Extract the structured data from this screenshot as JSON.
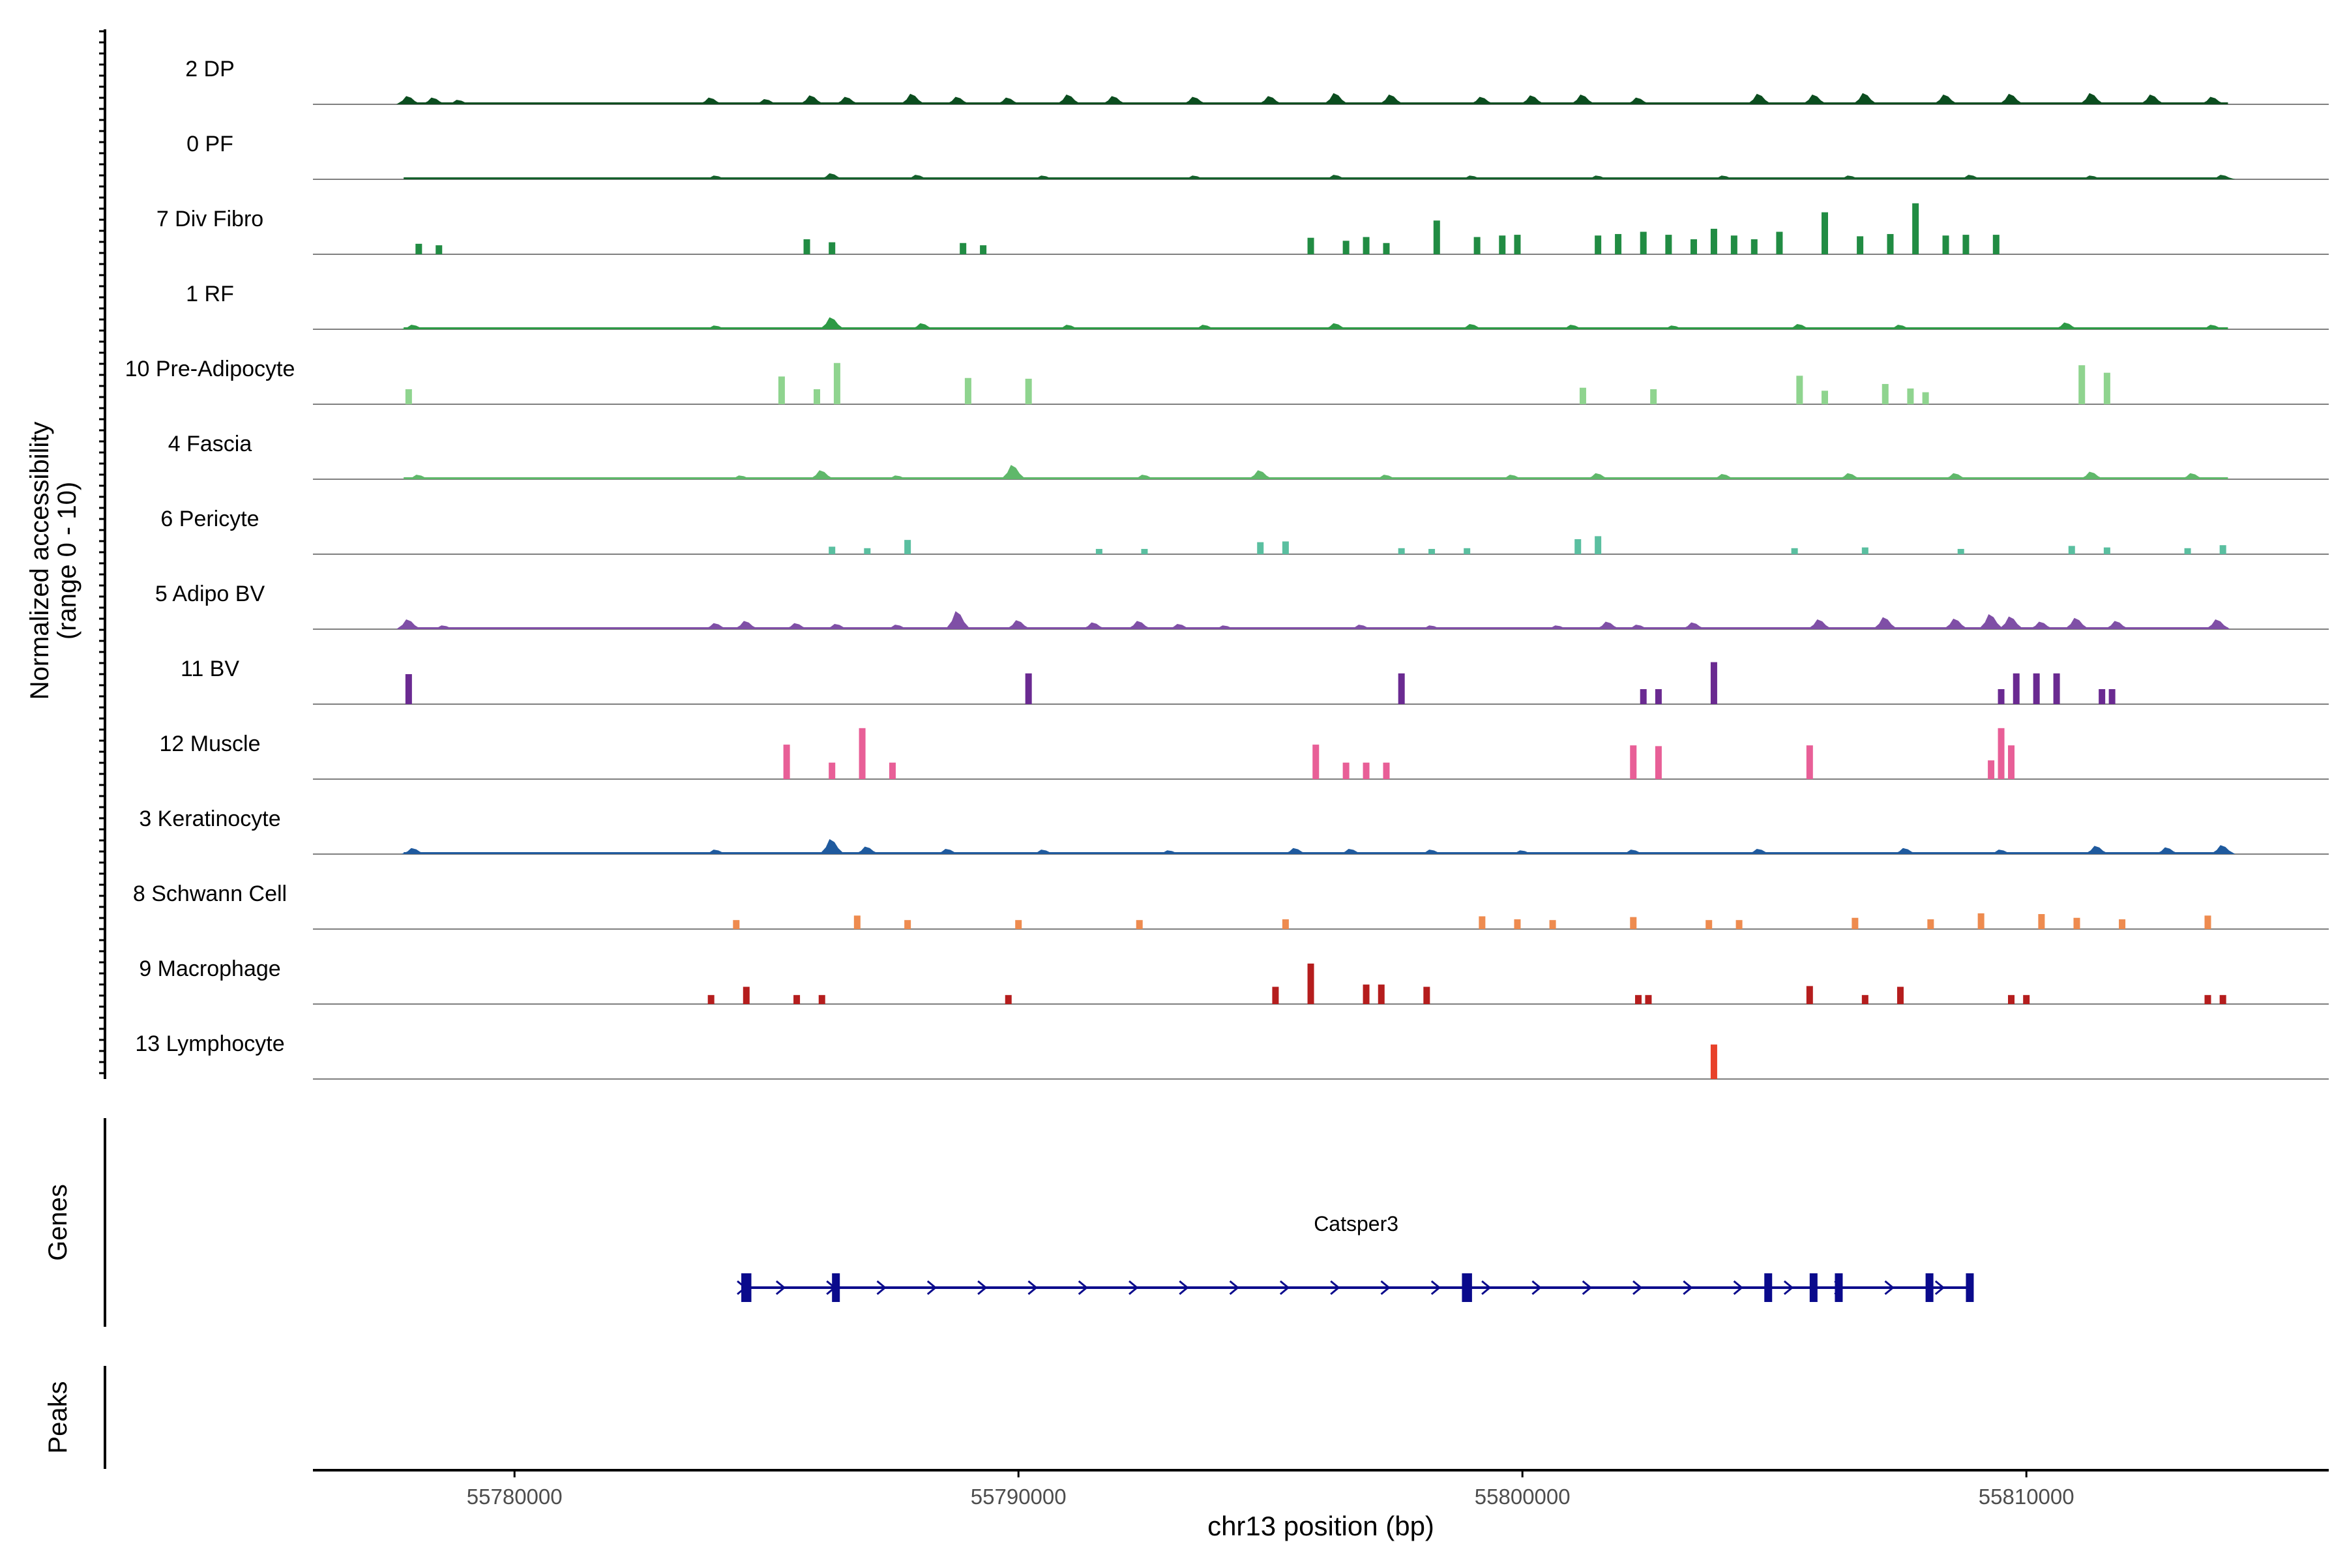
{
  "chart_data": {
    "type": "coverage",
    "chromosome": "chr13",
    "xlabel": "chr13 position (bp)",
    "ylabel_line1": "Normalized accessibility",
    "ylabel_line2": "(range 0 - 10)",
    "xlim": [
      55776000,
      55816000
    ],
    "x_ticks": [
      55780000,
      55790000,
      55800000,
      55810000
    ],
    "x_tick_labels": [
      "55780000",
      "55790000",
      "55800000",
      "55810000"
    ],
    "y_range": [
      0,
      10
    ],
    "genes_label": "Genes",
    "peaks_label": "Peaks",
    "tracks": [
      {
        "name": "2 DP",
        "color": "#0b4d1f",
        "start": 55777800,
        "end": 55814000,
        "peaks": [
          [
            55777900,
            1.1
          ],
          [
            55778400,
            0.9
          ],
          [
            55778900,
            0.6
          ],
          [
            55783900,
            0.9
          ],
          [
            55785000,
            0.7
          ],
          [
            55785900,
            1.2
          ],
          [
            55786600,
            1.0
          ],
          [
            55787900,
            1.4
          ],
          [
            55788800,
            1.0
          ],
          [
            55789800,
            0.9
          ],
          [
            55791000,
            1.3
          ],
          [
            55791900,
            1.1
          ],
          [
            55793500,
            1.0
          ],
          [
            55795000,
            1.1
          ],
          [
            55796300,
            1.5
          ],
          [
            55797400,
            1.3
          ],
          [
            55799200,
            1.0
          ],
          [
            55800200,
            1.2
          ],
          [
            55801200,
            1.3
          ],
          [
            55802300,
            0.9
          ],
          [
            55804700,
            1.4
          ],
          [
            55805800,
            1.3
          ],
          [
            55806800,
            1.5
          ],
          [
            55808400,
            1.3
          ],
          [
            55809700,
            1.4
          ],
          [
            55811300,
            1.5
          ],
          [
            55812500,
            1.3
          ],
          [
            55813700,
            1.0
          ]
        ]
      },
      {
        "name": "0 PF",
        "color": "#14602b",
        "start": 55777800,
        "end": 55814000,
        "peaks": [
          [
            55784000,
            0.5
          ],
          [
            55786300,
            0.8
          ],
          [
            55788000,
            0.6
          ],
          [
            55790500,
            0.5
          ],
          [
            55793500,
            0.5
          ],
          [
            55796300,
            0.6
          ],
          [
            55799000,
            0.5
          ],
          [
            55801500,
            0.5
          ],
          [
            55804000,
            0.5
          ],
          [
            55806500,
            0.5
          ],
          [
            55808900,
            0.6
          ],
          [
            55811300,
            0.5
          ],
          [
            55813900,
            0.6
          ]
        ]
      },
      {
        "name": "7 Div Fibro",
        "color": "#218c43",
        "start": 55777800,
        "end": 55814000,
        "sparse": true,
        "peaks": [
          [
            55778100,
            1.4
          ],
          [
            55778500,
            1.2
          ],
          [
            55785800,
            2.0
          ],
          [
            55786300,
            1.6
          ],
          [
            55788900,
            1.5
          ],
          [
            55789300,
            1.2
          ],
          [
            55795800,
            2.2
          ],
          [
            55796500,
            1.8
          ],
          [
            55796900,
            2.3
          ],
          [
            55797300,
            1.5
          ],
          [
            55798300,
            4.5
          ],
          [
            55799100,
            2.3
          ],
          [
            55799600,
            2.5
          ],
          [
            55799900,
            2.6
          ],
          [
            55801500,
            2.5
          ],
          [
            55801900,
            2.7
          ],
          [
            55802400,
            3.0
          ],
          [
            55802900,
            2.6
          ],
          [
            55803400,
            2.0
          ],
          [
            55803800,
            3.4
          ],
          [
            55804200,
            2.5
          ],
          [
            55804600,
            2.0
          ],
          [
            55805100,
            3.0
          ],
          [
            55806000,
            5.6
          ],
          [
            55806700,
            2.4
          ],
          [
            55807300,
            2.7
          ],
          [
            55807800,
            6.8
          ],
          [
            55808400,
            2.5
          ],
          [
            55808800,
            2.6
          ],
          [
            55809400,
            2.6
          ]
        ]
      },
      {
        "name": "1 RF",
        "color": "#2d9945",
        "start": 55777800,
        "end": 55814000,
        "peaks": [
          [
            55778000,
            0.6
          ],
          [
            55784000,
            0.5
          ],
          [
            55786300,
            1.6
          ],
          [
            55788100,
            0.8
          ],
          [
            55791000,
            0.6
          ],
          [
            55793700,
            0.6
          ],
          [
            55796300,
            0.8
          ],
          [
            55799000,
            0.7
          ],
          [
            55801000,
            0.6
          ],
          [
            55803000,
            0.5
          ],
          [
            55805500,
            0.7
          ],
          [
            55807500,
            0.6
          ],
          [
            55810800,
            0.9
          ],
          [
            55813700,
            0.6
          ]
        ]
      },
      {
        "name": "10 Pre-Adipocyte",
        "color": "#8fd48f",
        "start": 55777800,
        "end": 55814000,
        "sparse": true,
        "peaks": [
          [
            55777900,
            2.0
          ],
          [
            55785300,
            3.7
          ],
          [
            55786000,
            2.0
          ],
          [
            55786400,
            5.5
          ],
          [
            55789000,
            3.5
          ],
          [
            55790200,
            3.4
          ],
          [
            55801200,
            2.2
          ],
          [
            55802600,
            2.0
          ],
          [
            55805500,
            3.8
          ],
          [
            55806000,
            1.8
          ],
          [
            55807200,
            2.7
          ],
          [
            55807700,
            2.1
          ],
          [
            55808000,
            1.6
          ],
          [
            55811100,
            5.2
          ],
          [
            55811600,
            4.2
          ]
        ]
      },
      {
        "name": "4 Fascia",
        "color": "#5fb86a",
        "start": 55777800,
        "end": 55814000,
        "peaks": [
          [
            55778100,
            0.6
          ],
          [
            55784500,
            0.5
          ],
          [
            55786100,
            1.2
          ],
          [
            55787600,
            0.5
          ],
          [
            55789900,
            1.9
          ],
          [
            55792500,
            0.6
          ],
          [
            55794800,
            1.2
          ],
          [
            55797300,
            0.6
          ],
          [
            55799800,
            0.6
          ],
          [
            55801500,
            0.8
          ],
          [
            55804000,
            0.7
          ],
          [
            55806500,
            0.8
          ],
          [
            55808600,
            0.8
          ],
          [
            55811300,
            1.0
          ],
          [
            55813300,
            0.8
          ]
        ]
      },
      {
        "name": "6 Pericyte",
        "color": "#5abfa0",
        "start": 55786200,
        "end": 55814000,
        "sparse": true,
        "peaks": [
          [
            55786300,
            1.0
          ],
          [
            55787000,
            0.8
          ],
          [
            55787800,
            1.9
          ],
          [
            55791600,
            0.7
          ],
          [
            55792500,
            0.7
          ],
          [
            55794800,
            1.6
          ],
          [
            55795300,
            1.7
          ],
          [
            55797600,
            0.8
          ],
          [
            55798200,
            0.7
          ],
          [
            55798900,
            0.8
          ],
          [
            55801100,
            2.0
          ],
          [
            55801500,
            2.4
          ],
          [
            55805400,
            0.8
          ],
          [
            55806800,
            0.9
          ],
          [
            55808700,
            0.7
          ],
          [
            55810900,
            1.1
          ],
          [
            55811600,
            0.9
          ],
          [
            55813200,
            0.8
          ],
          [
            55813900,
            1.2
          ]
        ]
      },
      {
        "name": "5 Adipo BV",
        "color": "#7f4fa6",
        "start": 55777800,
        "end": 55814000,
        "peaks": [
          [
            55777900,
            1.3
          ],
          [
            55778600,
            0.5
          ],
          [
            55784000,
            0.8
          ],
          [
            55784600,
            1.1
          ],
          [
            55785600,
            0.8
          ],
          [
            55786400,
            0.7
          ],
          [
            55787600,
            0.6
          ],
          [
            55788800,
            2.4
          ],
          [
            55790000,
            1.2
          ],
          [
            55791500,
            0.9
          ],
          [
            55792400,
            1.1
          ],
          [
            55793200,
            0.7
          ],
          [
            55794100,
            0.5
          ],
          [
            55796800,
            0.6
          ],
          [
            55798200,
            0.5
          ],
          [
            55800700,
            0.5
          ],
          [
            55801700,
            1.0
          ],
          [
            55802300,
            0.6
          ],
          [
            55803400,
            0.9
          ],
          [
            55805900,
            1.3
          ],
          [
            55807200,
            1.6
          ],
          [
            55808600,
            1.4
          ],
          [
            55809300,
            2.0
          ],
          [
            55809700,
            1.7
          ],
          [
            55810300,
            1.0
          ],
          [
            55811000,
            1.5
          ],
          [
            55811800,
            1.1
          ],
          [
            55813800,
            1.3
          ]
        ]
      },
      {
        "name": "11 BV",
        "color": "#6a2a91",
        "start": 55777800,
        "end": 55814000,
        "sparse": true,
        "peaks": [
          [
            55777900,
            4.0
          ],
          [
            55790200,
            4.1
          ],
          [
            55797600,
            4.1
          ],
          [
            55802400,
            2.0
          ],
          [
            55802700,
            2.0
          ],
          [
            55803800,
            5.6
          ],
          [
            55809500,
            2.0
          ],
          [
            55809800,
            4.1
          ],
          [
            55810200,
            4.1
          ],
          [
            55810600,
            4.1
          ],
          [
            55811500,
            2.0
          ],
          [
            55811700,
            2.0
          ]
        ]
      },
      {
        "name": "12 Muscle",
        "color": "#e85f97",
        "start": 55784000,
        "end": 55814000,
        "sparse": true,
        "peaks": [
          [
            55785400,
            4.6
          ],
          [
            55786300,
            2.2
          ],
          [
            55786900,
            6.8
          ],
          [
            55787500,
            2.2
          ],
          [
            55795900,
            4.6
          ],
          [
            55796500,
            2.2
          ],
          [
            55796900,
            2.2
          ],
          [
            55797300,
            2.2
          ],
          [
            55802200,
            4.5
          ],
          [
            55802700,
            4.4
          ],
          [
            55805700,
            4.5
          ],
          [
            55809300,
            2.5
          ],
          [
            55809500,
            6.8
          ],
          [
            55809700,
            4.5
          ]
        ]
      },
      {
        "name": "3 Keratinocyte",
        "color": "#1f5a9e",
        "start": 55777800,
        "end": 55814000,
        "peaks": [
          [
            55778000,
            0.8
          ],
          [
            55784000,
            0.6
          ],
          [
            55786300,
            2.0
          ],
          [
            55787000,
            1.0
          ],
          [
            55788600,
            0.7
          ],
          [
            55790500,
            0.6
          ],
          [
            55793000,
            0.5
          ],
          [
            55795500,
            0.8
          ],
          [
            55796600,
            0.7
          ],
          [
            55798200,
            0.6
          ],
          [
            55800000,
            0.5
          ],
          [
            55802200,
            0.6
          ],
          [
            55804700,
            0.7
          ],
          [
            55807600,
            0.8
          ],
          [
            55809500,
            0.6
          ],
          [
            55811400,
            1.1
          ],
          [
            55812800,
            0.9
          ],
          [
            55813900,
            1.2
          ]
        ]
      },
      {
        "name": "8 Schwann Cell",
        "color": "#ee8b4f",
        "start": 55784000,
        "end": 55814000,
        "sparse": true,
        "peaks": [
          [
            55784400,
            1.2
          ],
          [
            55786800,
            1.8
          ],
          [
            55787800,
            1.2
          ],
          [
            55790000,
            1.2
          ],
          [
            55792400,
            1.2
          ],
          [
            55795300,
            1.3
          ],
          [
            55799200,
            1.7
          ],
          [
            55799900,
            1.3
          ],
          [
            55800600,
            1.2
          ],
          [
            55802200,
            1.6
          ],
          [
            55803700,
            1.2
          ],
          [
            55804300,
            1.2
          ],
          [
            55806600,
            1.5
          ],
          [
            55808100,
            1.3
          ],
          [
            55809100,
            2.1
          ],
          [
            55810300,
            2.0
          ],
          [
            55811000,
            1.5
          ],
          [
            55811900,
            1.3
          ],
          [
            55813600,
            1.8
          ]
        ]
      },
      {
        "name": "9 Macrophage",
        "color": "#b51d1d",
        "start": 55784000,
        "end": 55814000,
        "sparse": true,
        "peaks": [
          [
            55783900,
            1.2
          ],
          [
            55784600,
            2.3
          ],
          [
            55785600,
            1.2
          ],
          [
            55786100,
            1.2
          ],
          [
            55789800,
            1.2
          ],
          [
            55795100,
            2.3
          ],
          [
            55795800,
            5.4
          ],
          [
            55796900,
            2.6
          ],
          [
            55797200,
            2.6
          ],
          [
            55798100,
            2.3
          ],
          [
            55802300,
            1.2
          ],
          [
            55802500,
            1.2
          ],
          [
            55805700,
            2.4
          ],
          [
            55806800,
            1.2
          ],
          [
            55807500,
            2.3
          ],
          [
            55809700,
            1.2
          ],
          [
            55810000,
            1.2
          ],
          [
            55813600,
            1.2
          ],
          [
            55813900,
            1.2
          ]
        ]
      },
      {
        "name": "13 Lymphocyte",
        "color": "#e8412a",
        "start": 55784000,
        "end": 55814000,
        "sparse": true,
        "peaks": [
          [
            55803800,
            4.6
          ]
        ]
      }
    ],
    "gene": {
      "name": "Catsper3",
      "strand": "+",
      "color": "#0a0a8c",
      "start": 55784500,
      "end": 55808900,
      "exons": [
        [
          55784500,
          55784700
        ],
        [
          55786300,
          55786450
        ],
        [
          55798800,
          55799000
        ],
        [
          55804800,
          55804950
        ],
        [
          55805700,
          55805800
        ],
        [
          55806200,
          55806300
        ],
        [
          55808000,
          55808150
        ],
        [
          55808800,
          55808950
        ]
      ]
    }
  }
}
